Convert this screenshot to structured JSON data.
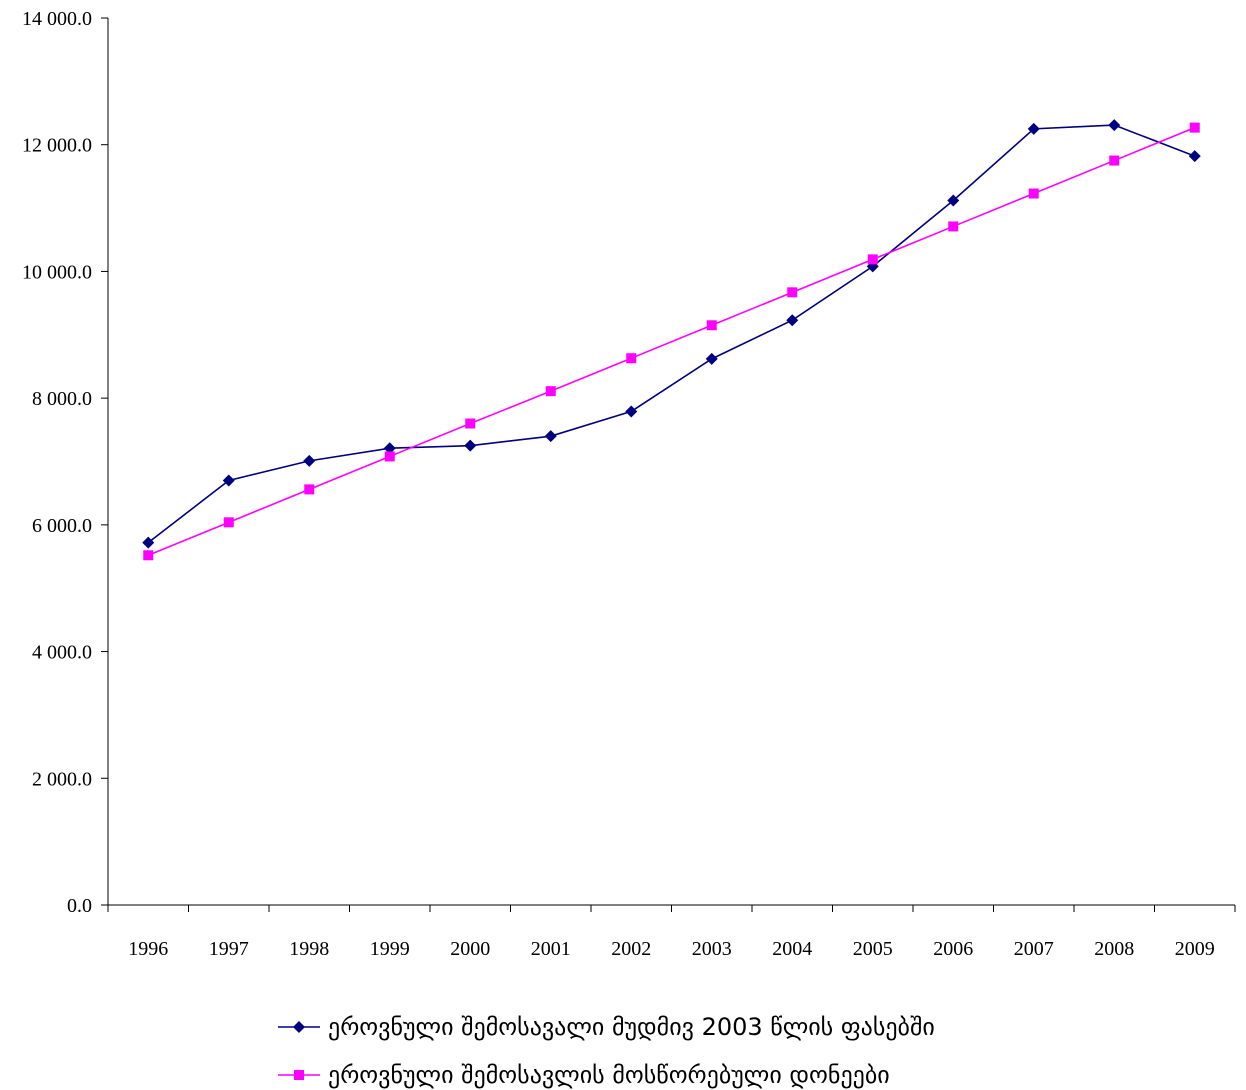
{
  "chart_data": {
    "type": "line",
    "categories": [
      "1996",
      "1997",
      "1998",
      "1999",
      "2000",
      "2001",
      "2002",
      "2003",
      "2004",
      "2005",
      "2006",
      "2007",
      "2008",
      "2009"
    ],
    "ylim": [
      0,
      14000
    ],
    "y_ticks": [
      0,
      2000,
      4000,
      6000,
      8000,
      10000,
      12000,
      14000
    ],
    "y_tick_labels": [
      "0.0",
      "2 000.0",
      "4 000.0",
      "6 000.0",
      "8 000.0",
      "10 000.0",
      "12 000.0",
      "14 000.0"
    ],
    "grid": false,
    "legend_position": "bottom",
    "series": [
      {
        "name": "ეროვნული შემოსავალი მუდმივ 2003 წლის ფასებში",
        "color": "#000080",
        "marker": "diamond",
        "values": [
          5720,
          6700,
          7010,
          7210,
          7250,
          7400,
          7790,
          8620,
          9230,
          10080,
          11120,
          12250,
          12310,
          11820
        ]
      },
      {
        "name": "ეროვნული შემოსავლის მოსწორებული დონეები",
        "color": "#ff00ff",
        "marker": "square",
        "values": [
          5520,
          6040,
          6560,
          7080,
          7600,
          8110,
          8630,
          9150,
          9670,
          10190,
          10710,
          11230,
          11750,
          12270
        ]
      }
    ]
  }
}
